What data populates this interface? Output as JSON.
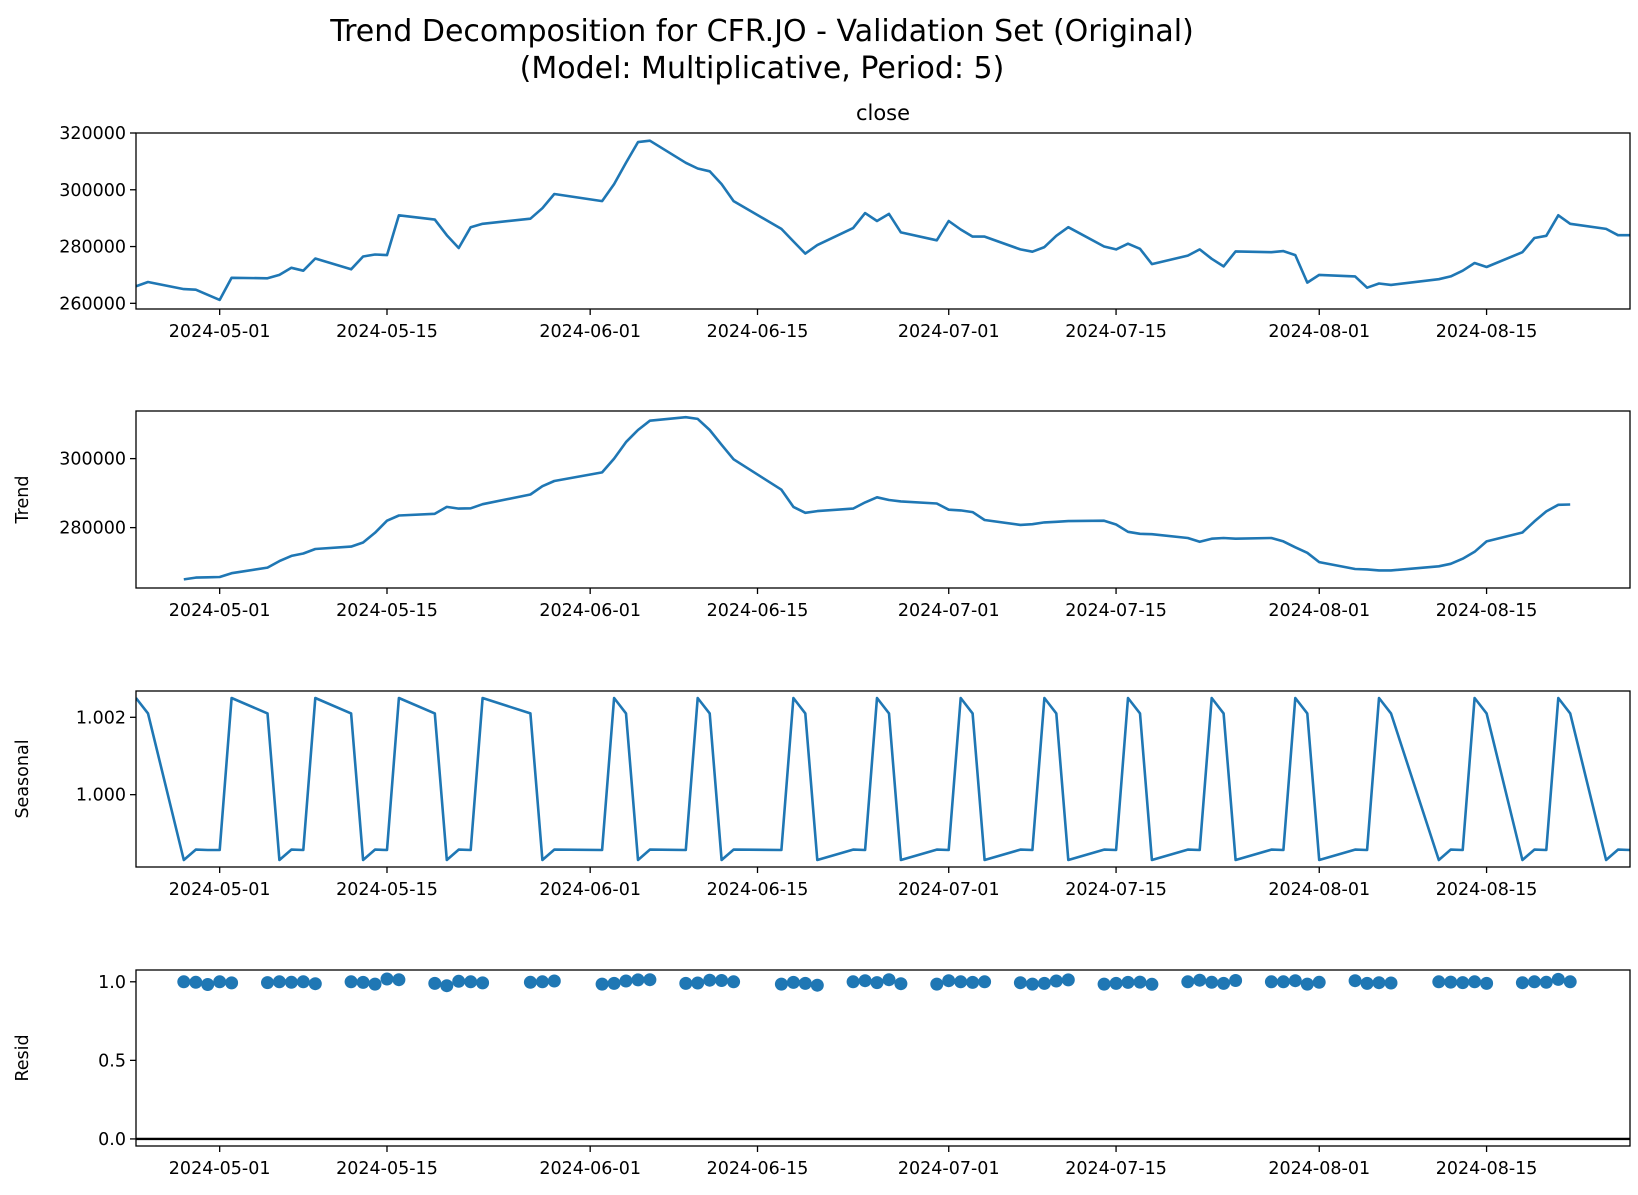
{
  "figure": {
    "title_line1": "Trend Decomposition for CFR.JO - Validation Set (Original)",
    "title_line2": "(Model: Multiplicative, Period: 5)"
  },
  "style": {
    "line_color": "#1f77b4",
    "axis_color": "#000000"
  },
  "x_ticks": [
    "2024-05-01",
    "2024-05-15",
    "2024-06-01",
    "2024-06-15",
    "2024-07-01",
    "2024-07-15",
    "2024-08-01",
    "2024-08-15"
  ],
  "chart_data": [
    {
      "type": "line",
      "title": "close",
      "ylabel": "",
      "xlim": [
        "2024-04-24",
        "2024-08-27"
      ],
      "ylim": [
        258000,
        320000
      ],
      "yticks": [
        260000,
        280000,
        300000,
        320000
      ],
      "ytick_labels": [
        "260000",
        "280000",
        "300000",
        "320000"
      ],
      "x": [
        "2024-04-24",
        "2024-04-25",
        "2024-04-28",
        "2024-04-29",
        "2024-04-30",
        "2024-05-01",
        "2024-05-02",
        "2024-05-05",
        "2024-05-06",
        "2024-05-07",
        "2024-05-08",
        "2024-05-09",
        "2024-05-12",
        "2024-05-13",
        "2024-05-14",
        "2024-05-15",
        "2024-05-16",
        "2024-05-19",
        "2024-05-20",
        "2024-05-21",
        "2024-05-22",
        "2024-05-23",
        "2024-05-27",
        "2024-05-28",
        "2024-05-29",
        "2024-06-02",
        "2024-06-03",
        "2024-06-04",
        "2024-06-05",
        "2024-06-06",
        "2024-06-09",
        "2024-06-10",
        "2024-06-11",
        "2024-06-12",
        "2024-06-13",
        "2024-06-17",
        "2024-06-18",
        "2024-06-19",
        "2024-06-20",
        "2024-06-23",
        "2024-06-24",
        "2024-06-25",
        "2024-06-26",
        "2024-06-27",
        "2024-06-30",
        "2024-07-01",
        "2024-07-02",
        "2024-07-03",
        "2024-07-04",
        "2024-07-07",
        "2024-07-08",
        "2024-07-09",
        "2024-07-10",
        "2024-07-11",
        "2024-07-14",
        "2024-07-15",
        "2024-07-16",
        "2024-07-17",
        "2024-07-18",
        "2024-07-21",
        "2024-07-22",
        "2024-07-23",
        "2024-07-24",
        "2024-07-25",
        "2024-07-28",
        "2024-07-29",
        "2024-07-30",
        "2024-07-31",
        "2024-08-01",
        "2024-08-04",
        "2024-08-05",
        "2024-08-06",
        "2024-08-07",
        "2024-08-11",
        "2024-08-12",
        "2024-08-13",
        "2024-08-14",
        "2024-08-15",
        "2024-08-18",
        "2024-08-19",
        "2024-08-20",
        "2024-08-21",
        "2024-08-22",
        "2024-08-25",
        "2024-08-26",
        "2024-08-27"
      ],
      "series": [
        {
          "values": [
            266000,
            267500,
            265000,
            264800,
            263000,
            261200,
            269000,
            268800,
            270000,
            272500,
            271500,
            275800,
            272000,
            276500,
            277200,
            277000,
            291000,
            289500,
            284000,
            279500,
            286800,
            288000,
            289800,
            293500,
            298500,
            296000,
            302000,
            309500,
            316800,
            317300,
            309500,
            307500,
            306500,
            302000,
            296000,
            286200,
            281800,
            277500,
            280500,
            286500,
            291800,
            289000,
            291500,
            285000,
            282200,
            289000,
            286000,
            283500,
            283500,
            279000,
            278200,
            279800,
            283800,
            286800,
            280000,
            279000,
            281000,
            279200,
            273800,
            276800,
            279000,
            275700,
            273000,
            278300,
            278000,
            278400,
            277000,
            267300,
            270000,
            269500,
            265500,
            267000,
            266500,
            268500,
            269500,
            271500,
            274200,
            272800,
            278000,
            283000,
            283800,
            291000,
            288000,
            286200,
            284000,
            284000
          ]
        }
      ]
    },
    {
      "type": "line",
      "title": "",
      "ylabel": "Trend",
      "xlim": [
        "2024-04-24",
        "2024-08-27"
      ],
      "ylim": [
        262500,
        313800
      ],
      "yticks": [
        280000,
        300000
      ],
      "ytick_labels": [
        "280000",
        "300000"
      ],
      "x": [
        "2024-04-28",
        "2024-04-29",
        "2024-04-30",
        "2024-05-01",
        "2024-05-02",
        "2024-05-05",
        "2024-05-06",
        "2024-05-07",
        "2024-05-08",
        "2024-05-09",
        "2024-05-12",
        "2024-05-13",
        "2024-05-14",
        "2024-05-15",
        "2024-05-16",
        "2024-05-19",
        "2024-05-20",
        "2024-05-21",
        "2024-05-22",
        "2024-05-23",
        "2024-05-27",
        "2024-05-28",
        "2024-05-29",
        "2024-06-02",
        "2024-06-03",
        "2024-06-04",
        "2024-06-05",
        "2024-06-06",
        "2024-06-09",
        "2024-06-10",
        "2024-06-11",
        "2024-06-12",
        "2024-06-13",
        "2024-06-17",
        "2024-06-18",
        "2024-06-19",
        "2024-06-20",
        "2024-06-23",
        "2024-06-24",
        "2024-06-25",
        "2024-06-26",
        "2024-06-27",
        "2024-06-30",
        "2024-07-01",
        "2024-07-02",
        "2024-07-03",
        "2024-07-04",
        "2024-07-07",
        "2024-07-08",
        "2024-07-09",
        "2024-07-10",
        "2024-07-11",
        "2024-07-14",
        "2024-07-15",
        "2024-07-16",
        "2024-07-17",
        "2024-07-18",
        "2024-07-21",
        "2024-07-22",
        "2024-07-23",
        "2024-07-24",
        "2024-07-25",
        "2024-07-28",
        "2024-07-29",
        "2024-07-30",
        "2024-07-31",
        "2024-08-01",
        "2024-08-04",
        "2024-08-05",
        "2024-08-06",
        "2024-08-07",
        "2024-08-11",
        "2024-08-12",
        "2024-08-13",
        "2024-08-14",
        "2024-08-15",
        "2024-08-18",
        "2024-08-19",
        "2024-08-20",
        "2024-08-21",
        "2024-08-22"
      ],
      "series": [
        {
          "values": [
            265000,
            265500,
            265600,
            265700,
            266800,
            268400,
            270300,
            271800,
            272500,
            273800,
            274500,
            275700,
            278500,
            282000,
            283500,
            284000,
            286000,
            285500,
            285600,
            286800,
            289600,
            292000,
            293500,
            296000,
            300000,
            304800,
            308300,
            311000,
            312000,
            311500,
            308300,
            304000,
            299800,
            291000,
            286000,
            284300,
            284800,
            285500,
            287300,
            288800,
            288000,
            287600,
            287000,
            285200,
            285000,
            284500,
            282200,
            280800,
            281000,
            281500,
            281700,
            281900,
            282000,
            280900,
            278800,
            278200,
            278100,
            277000,
            275900,
            276800,
            277000,
            276800,
            277000,
            276000,
            274300,
            272700,
            270000,
            268000,
            267900,
            267600,
            267600,
            268800,
            269500,
            271000,
            273000,
            276000,
            278600,
            281800,
            284700,
            286600,
            286700
          ]
        }
      ]
    },
    {
      "type": "line",
      "title": "",
      "ylabel": "Seasonal",
      "xlim": [
        "2024-04-24",
        "2024-08-27"
      ],
      "ylim": [
        0.99813,
        1.00268
      ],
      "yticks": [
        1.0,
        1.002
      ],
      "ytick_labels": [
        "1.000",
        "1.002"
      ],
      "x": [
        "2024-04-24",
        "2024-04-25",
        "2024-04-28",
        "2024-04-29",
        "2024-04-30",
        "2024-05-01",
        "2024-05-02",
        "2024-05-05",
        "2024-05-06",
        "2024-05-07",
        "2024-05-08",
        "2024-05-09",
        "2024-05-12",
        "2024-05-13",
        "2024-05-14",
        "2024-05-15",
        "2024-05-16",
        "2024-05-19",
        "2024-05-20",
        "2024-05-21",
        "2024-05-22",
        "2024-05-23",
        "2024-05-27",
        "2024-05-28",
        "2024-05-29",
        "2024-06-02",
        "2024-06-03",
        "2024-06-04",
        "2024-06-05",
        "2024-06-06",
        "2024-06-09",
        "2024-06-10",
        "2024-06-11",
        "2024-06-12",
        "2024-06-13",
        "2024-06-17",
        "2024-06-18",
        "2024-06-19",
        "2024-06-20",
        "2024-06-23",
        "2024-06-24",
        "2024-06-25",
        "2024-06-26",
        "2024-06-27",
        "2024-06-30",
        "2024-07-01",
        "2024-07-02",
        "2024-07-03",
        "2024-07-04",
        "2024-07-07",
        "2024-07-08",
        "2024-07-09",
        "2024-07-10",
        "2024-07-11",
        "2024-07-14",
        "2024-07-15",
        "2024-07-16",
        "2024-07-17",
        "2024-07-18",
        "2024-07-21",
        "2024-07-22",
        "2024-07-23",
        "2024-07-24",
        "2024-07-25",
        "2024-07-28",
        "2024-07-29",
        "2024-07-30",
        "2024-07-31",
        "2024-08-01",
        "2024-08-04",
        "2024-08-05",
        "2024-08-06",
        "2024-08-07",
        "2024-08-11",
        "2024-08-12",
        "2024-08-13",
        "2024-08-14",
        "2024-08-15",
        "2024-08-18",
        "2024-08-19",
        "2024-08-20",
        "2024-08-21",
        "2024-08-22",
        "2024-08-25",
        "2024-08-26",
        "2024-08-27"
      ],
      "series": [
        {
          "values": [
            1.0025,
            1.0021,
            0.99831,
            0.99858,
            0.99857,
            0.99857,
            1.0025,
            1.0021,
            0.99831,
            0.99858,
            0.99857,
            1.0025,
            1.0021,
            0.99831,
            0.99858,
            0.99857,
            1.0025,
            1.0021,
            0.99831,
            0.99858,
            0.99857,
            1.0025,
            1.0021,
            0.99831,
            0.99858,
            0.99857,
            1.0025,
            1.0021,
            0.99831,
            0.99858,
            0.99857,
            1.0025,
            1.0021,
            0.99831,
            0.99858,
            0.99857,
            1.0025,
            1.0021,
            0.99831,
            0.99858,
            0.99857,
            1.0025,
            1.0021,
            0.99831,
            0.99858,
            0.99857,
            1.0025,
            1.0021,
            0.99831,
            0.99858,
            0.99857,
            1.0025,
            1.0021,
            0.99831,
            0.99858,
            0.99857,
            1.0025,
            1.0021,
            0.99831,
            0.99858,
            0.99857,
            1.0025,
            1.0021,
            0.99831,
            0.99858,
            0.99857,
            1.0025,
            1.0021,
            0.99831,
            0.99858,
            0.99857,
            1.0025,
            1.0021,
            0.99831,
            0.99858,
            0.99857,
            1.0025,
            1.0021,
            0.99831,
            0.99858,
            0.99857,
            1.0025,
            1.0021,
            0.99831,
            0.99858,
            0.99857
          ]
        }
      ]
    },
    {
      "type": "scatter",
      "title": "",
      "ylabel": "Resid",
      "xlim": [
        "2024-04-24",
        "2024-08-27"
      ],
      "ylim": [
        -0.045,
        1.075
      ],
      "yticks": [
        0.0,
        0.5,
        1.0
      ],
      "ytick_labels": [
        "0.0",
        "0.5",
        "1.0"
      ],
      "baseline": 0,
      "x": [
        "2024-04-28",
        "2024-04-29",
        "2024-04-30",
        "2024-05-01",
        "2024-05-02",
        "2024-05-05",
        "2024-05-06",
        "2024-05-07",
        "2024-05-08",
        "2024-05-09",
        "2024-05-12",
        "2024-05-13",
        "2024-05-14",
        "2024-05-15",
        "2024-05-16",
        "2024-05-19",
        "2024-05-20",
        "2024-05-21",
        "2024-05-22",
        "2024-05-23",
        "2024-05-27",
        "2024-05-28",
        "2024-05-29",
        "2024-06-02",
        "2024-06-03",
        "2024-06-04",
        "2024-06-05",
        "2024-06-06",
        "2024-06-09",
        "2024-06-10",
        "2024-06-11",
        "2024-06-12",
        "2024-06-13",
        "2024-06-17",
        "2024-06-18",
        "2024-06-19",
        "2024-06-20",
        "2024-06-23",
        "2024-06-24",
        "2024-06-25",
        "2024-06-26",
        "2024-06-27",
        "2024-06-30",
        "2024-07-01",
        "2024-07-02",
        "2024-07-03",
        "2024-07-04",
        "2024-07-07",
        "2024-07-08",
        "2024-07-09",
        "2024-07-10",
        "2024-07-11",
        "2024-07-14",
        "2024-07-15",
        "2024-07-16",
        "2024-07-17",
        "2024-07-18",
        "2024-07-21",
        "2024-07-22",
        "2024-07-23",
        "2024-07-24",
        "2024-07-25",
        "2024-07-28",
        "2024-07-29",
        "2024-07-30",
        "2024-07-31",
        "2024-08-01",
        "2024-08-04",
        "2024-08-05",
        "2024-08-06",
        "2024-08-07",
        "2024-08-11",
        "2024-08-12",
        "2024-08-13",
        "2024-08-14",
        "2024-08-15",
        "2024-08-18",
        "2024-08-19",
        "2024-08-20",
        "2024-08-21",
        "2024-08-22"
      ],
      "series": [
        {
          "values": [
            1.0,
            0.997,
            0.983,
            1.0,
            0.993,
            0.995,
            1.0,
            0.997,
            1.0,
            0.988,
            1.0,
            0.996,
            0.985,
            1.018,
            1.013,
            0.99,
            0.975,
            1.003,
            1.0,
            0.993,
            0.997,
            1.0,
            1.005,
            0.985,
            0.99,
            1.005,
            1.012,
            1.013,
            0.99,
            0.992,
            1.01,
            1.008,
            1.0,
            0.985,
            0.996,
            0.99,
            0.978,
            1.0,
            1.007,
            0.995,
            1.013,
            0.988,
            0.985,
            1.007,
            1.0,
            0.996,
            1.0,
            0.994,
            0.985,
            0.99,
            1.005,
            1.012,
            0.985,
            0.99,
            0.996,
            0.998,
            0.984,
            1.0,
            1.01,
            0.997,
            0.99,
            1.008,
            1.0,
            1.0,
            1.007,
            0.985,
            0.997,
            1.007,
            0.99,
            0.994,
            0.992,
            1.0,
            0.998,
            0.995,
            1.0,
            0.99,
            0.994,
            1.0,
            0.997,
            1.015,
            1.0
          ]
        }
      ]
    }
  ]
}
